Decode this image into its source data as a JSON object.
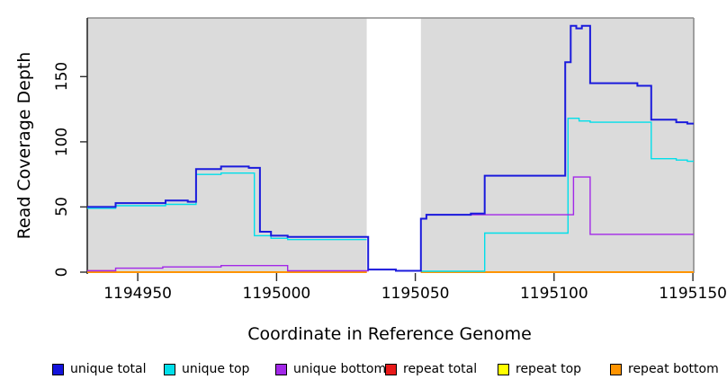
{
  "chart_data": {
    "type": "line",
    "subtype": "step-coverage",
    "xlabel": "Coordinate in Reference Genome",
    "ylabel": "Read Coverage Depth",
    "xlim": [
      1194931.8,
      1195150.3
    ],
    "ylim": [
      0,
      195
    ],
    "x_ticks": [
      1194950,
      1195000,
      1195050,
      1195100,
      1195150
    ],
    "y_ticks": [
      0,
      50,
      100,
      150
    ],
    "grid": false,
    "panel_color": "#DBDBDB",
    "border_color": "#8C8C8C",
    "axis_color": "#2B2B2B",
    "shaded_regions": [
      [
        1194931.8,
        1195032.5
      ],
      [
        1195052,
        1195150.3
      ]
    ],
    "masked_gap": [
      1195032.5,
      1195052
    ],
    "legend_position": "bottom",
    "legend": [
      {
        "label": "unique total",
        "color": "#1414DC"
      },
      {
        "label": "unique top",
        "color": "#00DFEA"
      },
      {
        "label": "unique bottom",
        "color": "#A228E8"
      },
      {
        "label": "repeat total",
        "color": "#E81A1A"
      },
      {
        "label": "repeat top",
        "color": "#FFFF00"
      },
      {
        "label": "repeat bottom",
        "color": "#FF9400"
      }
    ],
    "series": [
      {
        "name": "repeat total",
        "color": "#E81A1A",
        "width": 1.4,
        "segments": [
          {
            "steps": [
              [
                1194931.8,
                1
              ],
              [
                1194942,
                0
              ]
            ],
            "end": 1195032.5
          },
          {
            "steps": [
              [
                1195052,
                0
              ]
            ],
            "end": 1195150.3
          }
        ]
      },
      {
        "name": "repeat top",
        "color": "#FFFF00",
        "width": 1.4,
        "segments": [
          {
            "steps": [
              [
                1194931.8,
                0
              ]
            ],
            "end": 1195032.5
          },
          {
            "steps": [
              [
                1195052,
                0
              ]
            ],
            "end": 1195150.3
          }
        ]
      },
      {
        "name": "repeat bottom",
        "color": "#FF9400",
        "width": 2,
        "segments": [
          {
            "steps": [
              [
                1194931.8,
                0
              ]
            ],
            "end": 1195032.5
          },
          {
            "steps": [
              [
                1195052,
                0
              ]
            ],
            "end": 1195150.3
          }
        ]
      },
      {
        "name": "unique top",
        "color": "#00DFEA",
        "width": 1.4,
        "segments": [
          {
            "steps": [
              [
                1194931.8,
                49
              ],
              [
                1194942,
                51
              ],
              [
                1194960,
                52
              ],
              [
                1194971,
                75
              ],
              [
                1194980,
                76
              ],
              [
                1194992,
                28
              ],
              [
                1194998,
                26
              ],
              [
                1195004,
                25
              ]
            ],
            "end": 1195032.5
          },
          {
            "steps": [
              [
                1195052,
                0.7
              ],
              [
                1195075,
                30
              ],
              [
                1195105,
                118
              ],
              [
                1195109,
                116
              ],
              [
                1195113,
                115
              ],
              [
                1195135,
                87
              ],
              [
                1195144,
                86
              ],
              [
                1195148,
                85
              ]
            ],
            "end": 1195150.3
          }
        ]
      },
      {
        "name": "unique bottom",
        "color": "#A228E8",
        "width": 1.4,
        "segments": [
          {
            "steps": [
              [
                1194931.8,
                1
              ],
              [
                1194942,
                3
              ],
              [
                1194959,
                4
              ],
              [
                1194980,
                5
              ],
              [
                1195004,
                1
              ],
              [
                1195033,
                2
              ],
              [
                1195043,
                1
              ],
              [
                1195052,
                41
              ],
              [
                1195054,
                44
              ],
              [
                1195107,
                73
              ],
              [
                1195113,
                29
              ]
            ],
            "end": 1195150.3
          }
        ]
      },
      {
        "name": "unique total",
        "color": "#1B1BDC",
        "width": 2,
        "segments": [
          {
            "steps": [
              [
                1194931.8,
                50
              ],
              [
                1194942,
                53
              ],
              [
                1194960,
                55
              ],
              [
                1194968,
                54
              ],
              [
                1194971,
                79
              ],
              [
                1194980,
                81
              ],
              [
                1194990,
                80
              ],
              [
                1194994,
                31
              ],
              [
                1194998,
                28
              ],
              [
                1195004,
                27
              ],
              [
                1195033,
                2
              ],
              [
                1195043,
                1
              ],
              [
                1195052,
                41
              ],
              [
                1195054,
                44
              ],
              [
                1195070,
                45
              ],
              [
                1195075,
                74
              ],
              [
                1195104,
                161
              ],
              [
                1195106,
                189
              ],
              [
                1195108,
                187
              ],
              [
                1195110,
                189
              ],
              [
                1195113,
                145
              ],
              [
                1195130,
                143
              ],
              [
                1195135,
                117
              ],
              [
                1195144,
                115
              ],
              [
                1195148,
                114
              ]
            ],
            "end": 1195150.3
          }
        ]
      }
    ]
  }
}
